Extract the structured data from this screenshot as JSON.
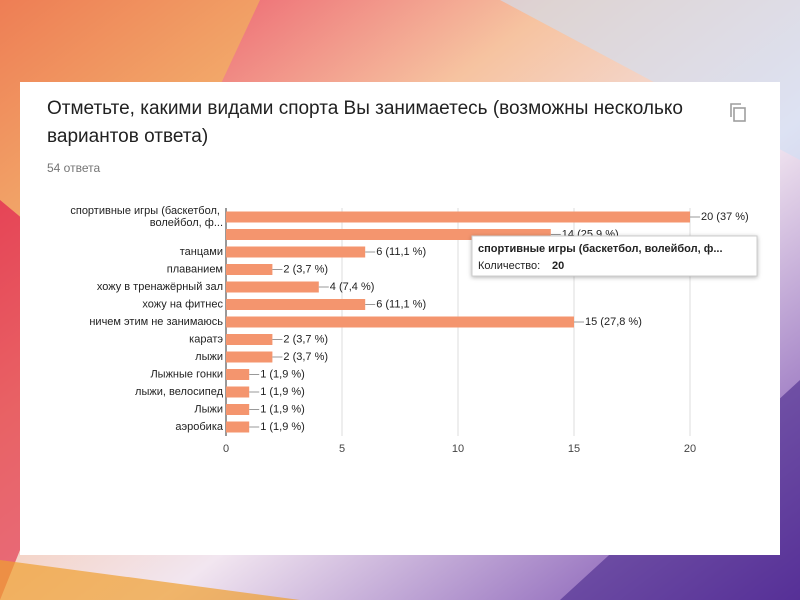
{
  "chart_data": {
    "type": "bar",
    "orientation": "horizontal",
    "title": "Отметьте, какими видами спорта Вы занимаетесь (возможны несколько вариантов ответа)",
    "subtitle": "54 ответа",
    "categories": [
      "спортивные игры (баскетбол, волейбол, ф...",
      null,
      "танцами",
      "плаванием",
      "хожу в тренажёрный зал",
      "хожу на фитнес",
      "ничем этим не занимаюсь",
      "каратэ",
      "лыжи",
      "Лыжные гонки",
      "лыжи, велосипед",
      "Лыжи",
      "аэробика"
    ],
    "values": [
      20,
      14,
      6,
      2,
      4,
      6,
      15,
      2,
      2,
      1,
      1,
      1,
      1
    ],
    "value_labels": [
      "20 (37 %)",
      "14 (25,9 %)",
      "6 (11,1 %)",
      "2 (3,7 %)",
      "4 (7,4 %)",
      "6 (11,1 %)",
      "15 (27,8 %)",
      "2 (3,7 %)",
      "2 (3,7 %)",
      "1 (1,9 %)",
      "1 (1,9 %)",
      "1 (1,9 %)",
      "1 (1,9 %)"
    ],
    "color": "#f4956e",
    "xlim": [
      0,
      20
    ],
    "xticks": [
      0,
      5,
      10,
      15,
      20
    ],
    "grid": true,
    "tooltip": {
      "label": "Количество:"
    }
  }
}
